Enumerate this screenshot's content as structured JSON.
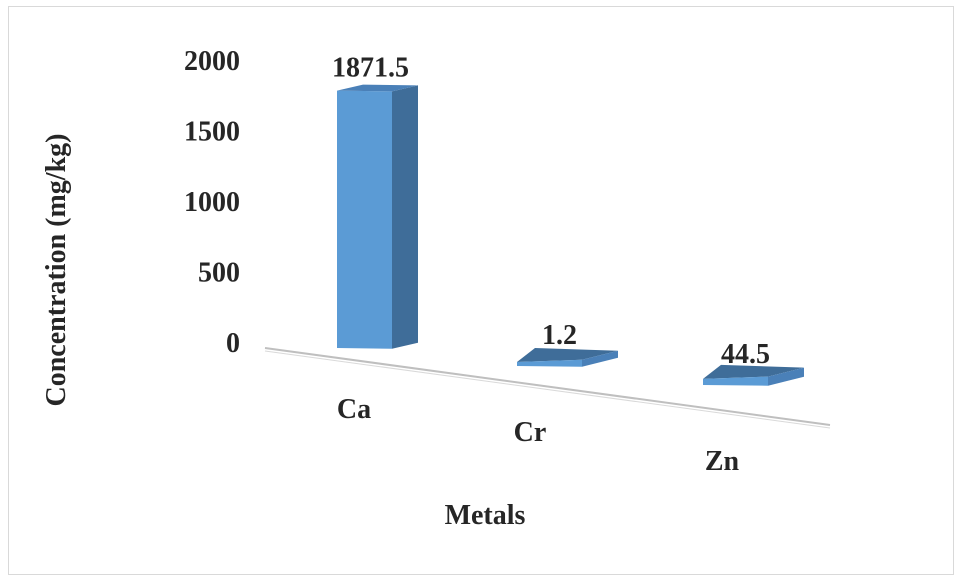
{
  "chart_data": {
    "type": "bar",
    "categories": [
      "Ca",
      "Cr",
      "Zn"
    ],
    "values": [
      1871.5,
      1.2,
      44.5
    ],
    "data_labels": [
      "1871.5",
      "1.2",
      "44.5"
    ],
    "title": "",
    "xlabel": "Metals",
    "ylabel": "Concentration (mg/kg)",
    "ylim": [
      0,
      2000
    ],
    "yticks": [
      "0",
      "500",
      "1000",
      "1500",
      "2000"
    ],
    "grid": false,
    "legend": "none",
    "colors": {
      "bar_front": "#5b9bd5",
      "bar_side": "#3f6d99",
      "bar_top": "#4a80b8",
      "floor_line": "#bfbfbf",
      "text": "#262626"
    }
  }
}
